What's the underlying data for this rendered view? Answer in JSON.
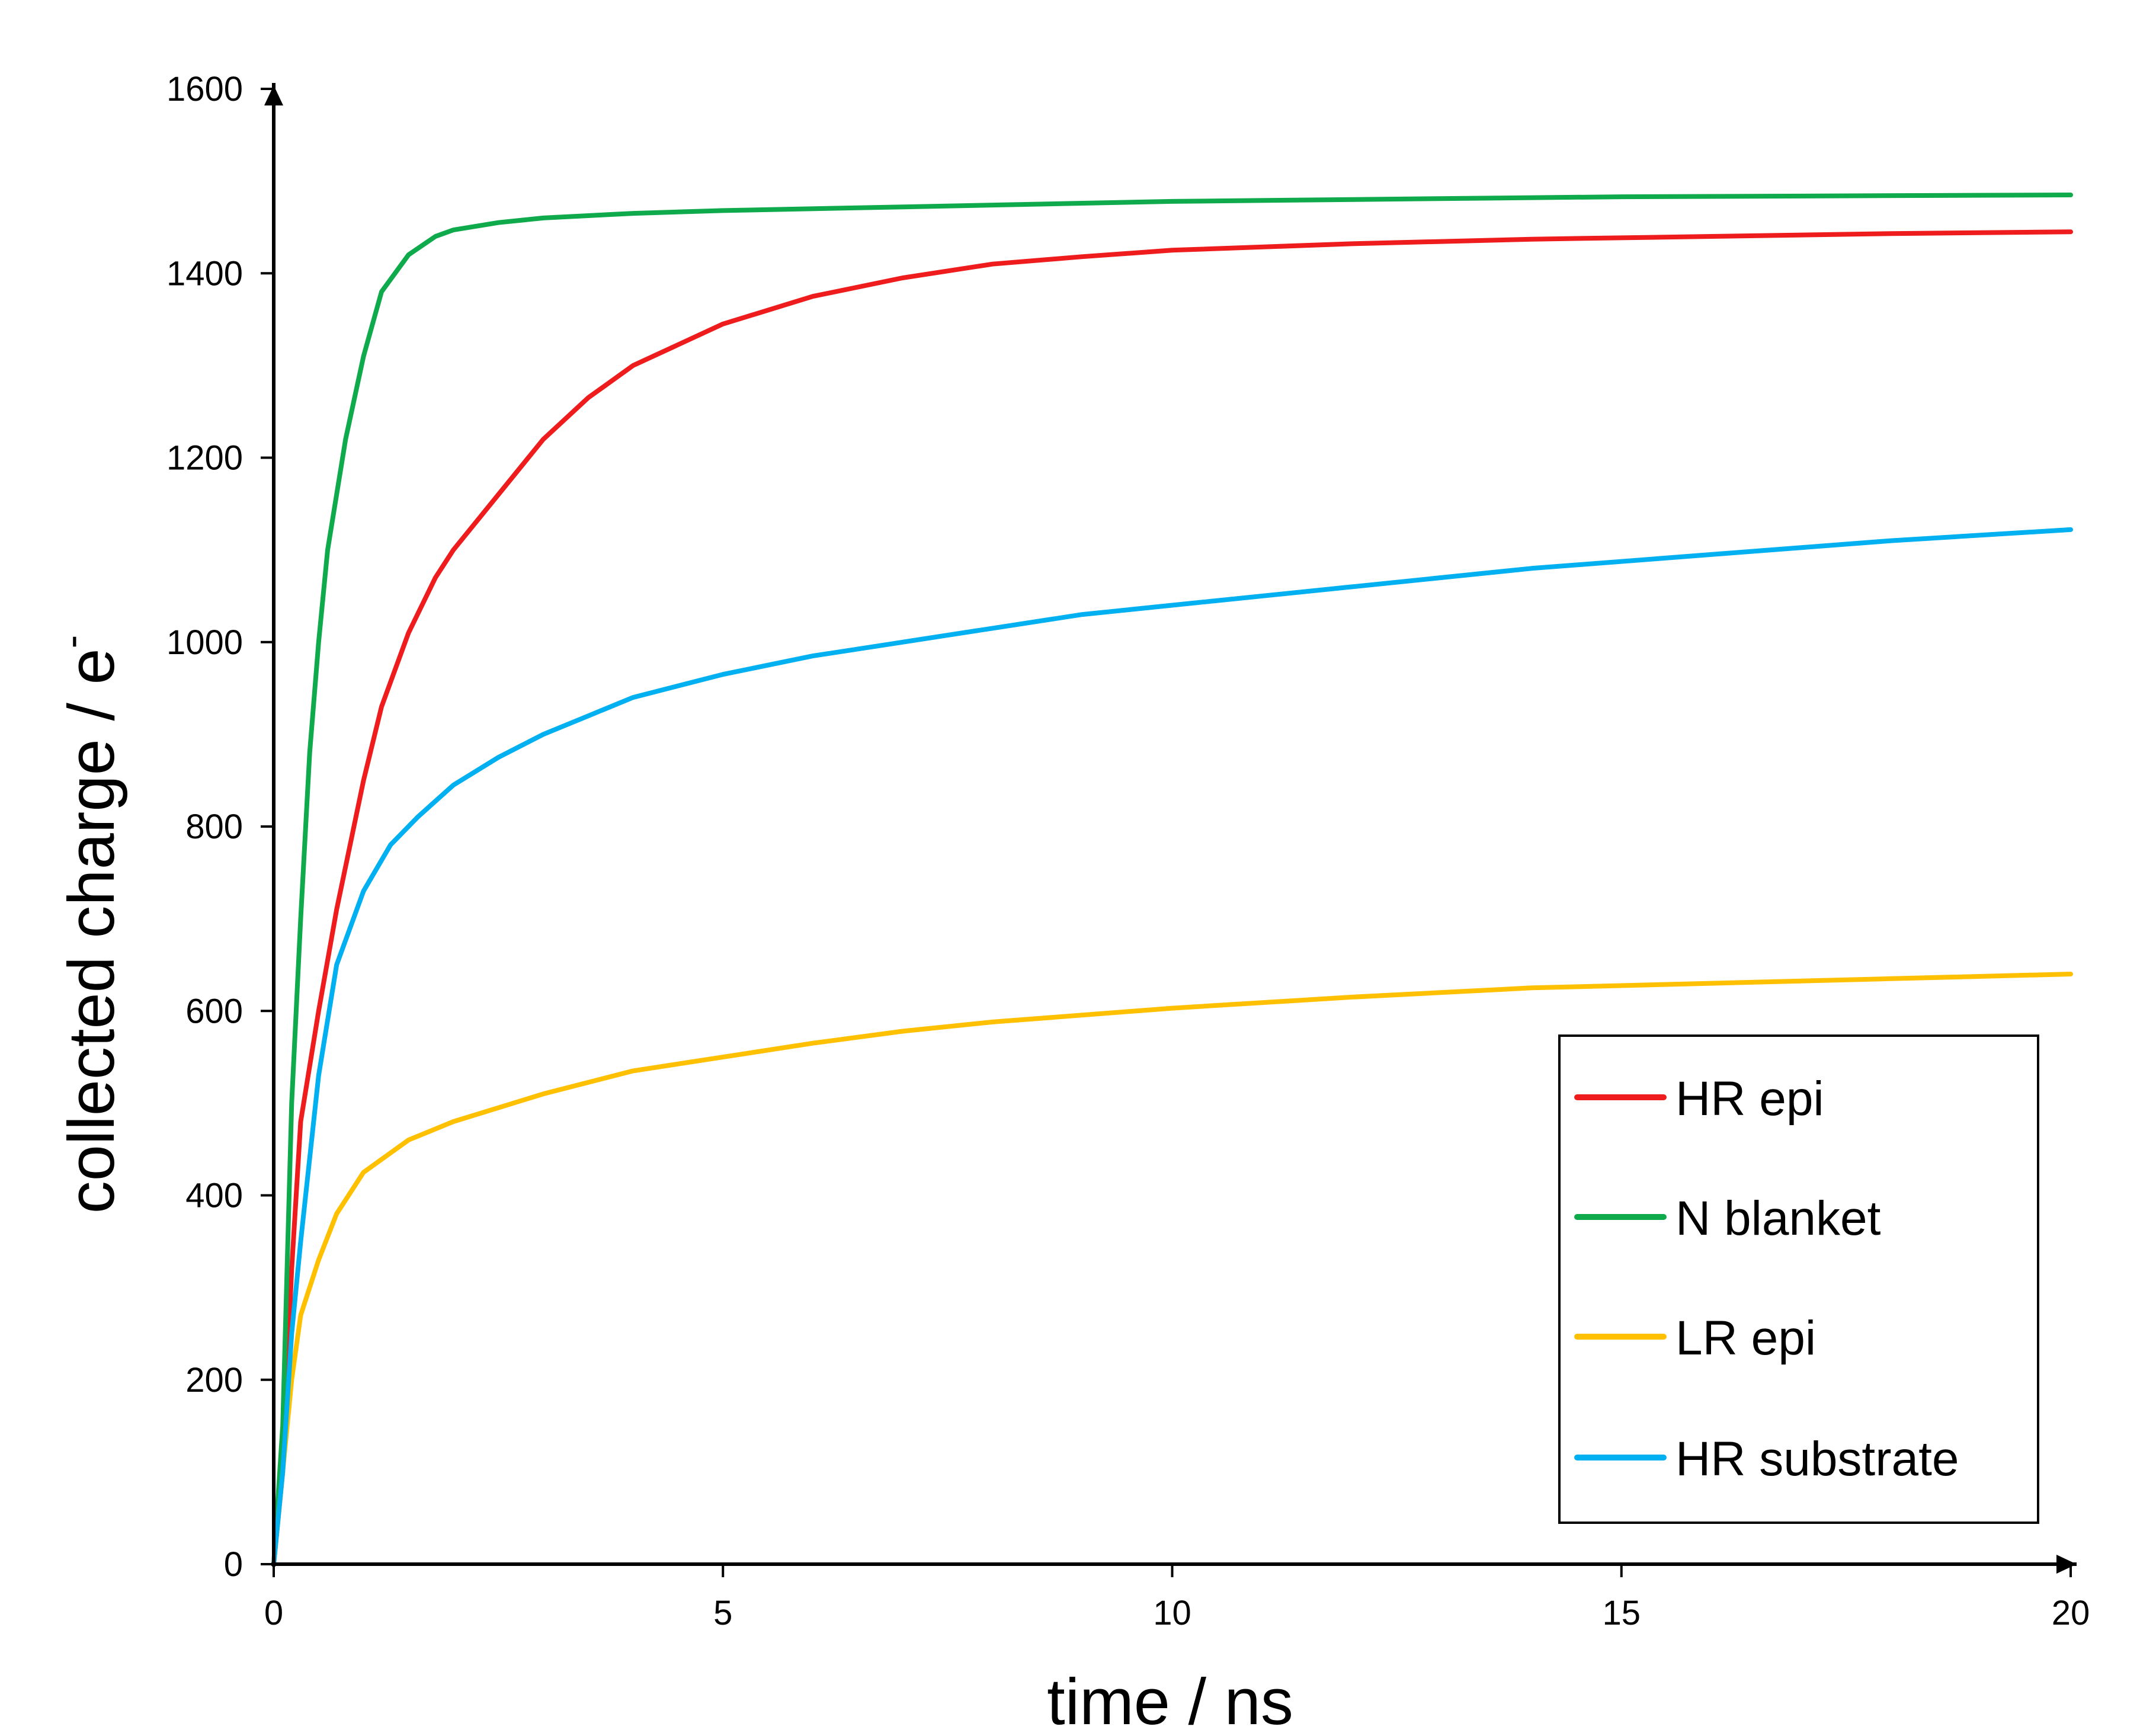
{
  "chart_data": {
    "type": "line",
    "title": "",
    "xlabel": "time / ns",
    "ylabel": "collected charge / e",
    "ylabel_superscript": "-",
    "xlim": [
      0,
      20
    ],
    "ylim": [
      0,
      1600
    ],
    "xticks": [
      0,
      5,
      10,
      15,
      20
    ],
    "yticks": [
      0,
      200,
      400,
      600,
      800,
      1000,
      1200,
      1400,
      1600
    ],
    "grid": false,
    "legend_position": "bottom-right",
    "series": [
      {
        "name": "HR epi",
        "color": "#ee1c1c",
        "x": [
          0,
          0.1,
          0.2,
          0.3,
          0.5,
          0.7,
          1.0,
          1.2,
          1.5,
          1.8,
          2.0,
          2.5,
          3.0,
          3.5,
          4.0,
          5.0,
          6.0,
          7.0,
          8.0,
          9.0,
          10.0,
          12.0,
          14.0,
          16.0,
          18.0,
          20.0
        ],
        "y": [
          0,
          100,
          320,
          480,
          600,
          710,
          850,
          930,
          1010,
          1070,
          1100,
          1160,
          1220,
          1265,
          1300,
          1345,
          1375,
          1395,
          1410,
          1418,
          1425,
          1432,
          1437,
          1440,
          1443,
          1445
        ]
      },
      {
        "name": "N blanket",
        "color": "#0faa4b",
        "x": [
          0,
          0.1,
          0.2,
          0.3,
          0.4,
          0.5,
          0.6,
          0.8,
          1.0,
          1.2,
          1.5,
          1.8,
          2.0,
          2.5,
          3.0,
          4.0,
          5.0,
          7.0,
          10.0,
          15.0,
          20.0
        ],
        "y": [
          0,
          150,
          500,
          700,
          880,
          1000,
          1100,
          1220,
          1310,
          1380,
          1420,
          1440,
          1447,
          1455,
          1460,
          1465,
          1468,
          1472,
          1478,
          1483,
          1485
        ]
      },
      {
        "name": "LR epi",
        "color": "#ffc000",
        "x": [
          0,
          0.1,
          0.2,
          0.3,
          0.5,
          0.7,
          1.0,
          1.5,
          2.0,
          2.5,
          3.0,
          4.0,
          5.0,
          6.0,
          7.0,
          8.0,
          10.0,
          12.0,
          14.0,
          16.0,
          18.0,
          20.0
        ],
        "y": [
          0,
          100,
          200,
          270,
          330,
          380,
          425,
          460,
          480,
          495,
          510,
          535,
          550,
          565,
          578,
          588,
          603,
          615,
          625,
          630,
          635,
          640
        ]
      },
      {
        "name": "HR substrate",
        "color": "#00b0f0",
        "x": [
          0,
          0.1,
          0.2,
          0.3,
          0.5,
          0.7,
          1.0,
          1.3,
          1.6,
          2.0,
          2.5,
          3.0,
          3.5,
          4.0,
          5.0,
          6.0,
          7.0,
          8.0,
          9.0,
          10.0,
          12.0,
          14.0,
          16.0,
          18.0,
          20.0
        ],
        "y": [
          0,
          100,
          250,
          350,
          530,
          650,
          730,
          780,
          810,
          845,
          875,
          900,
          920,
          940,
          965,
          985,
          1000,
          1015,
          1030,
          1040,
          1060,
          1080,
          1095,
          1110,
          1122
        ]
      }
    ]
  }
}
